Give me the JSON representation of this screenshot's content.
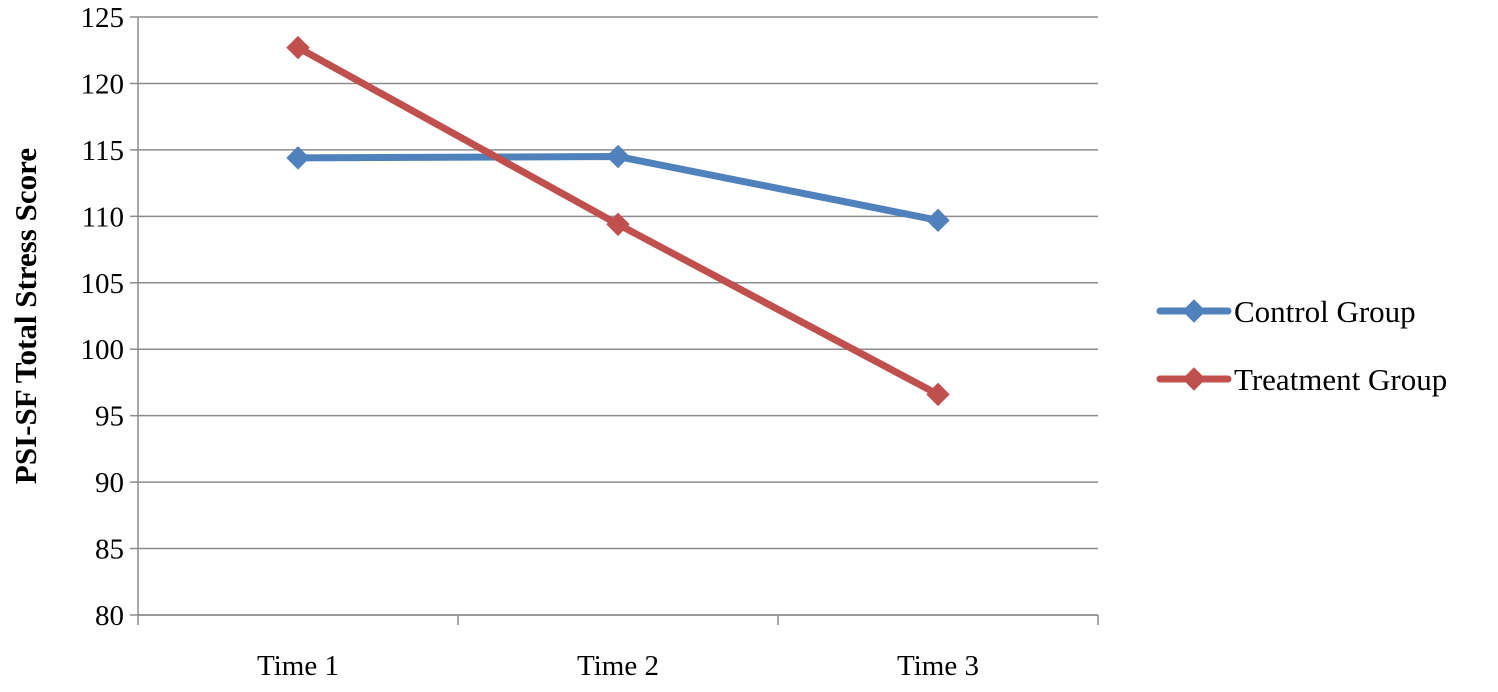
{
  "chart_data": {
    "type": "line",
    "title": "",
    "xlabel": "",
    "ylabel": "PSI-SF Total Stress Score",
    "categories": [
      "Time 1",
      "Time 2",
      "Time 3"
    ],
    "ylim": [
      80,
      125
    ],
    "yticks": [
      80,
      85,
      90,
      95,
      100,
      105,
      110,
      115,
      120,
      125
    ],
    "grid": true,
    "legend_position": "right",
    "series": [
      {
        "name": "Control Group",
        "color": "#4f81bd",
        "marker": "diamond",
        "values": [
          114.4,
          114.5,
          109.7
        ]
      },
      {
        "name": "Treatment Group",
        "color": "#c0504d",
        "marker": "diamond",
        "values": [
          122.7,
          109.4,
          96.6
        ]
      }
    ]
  }
}
